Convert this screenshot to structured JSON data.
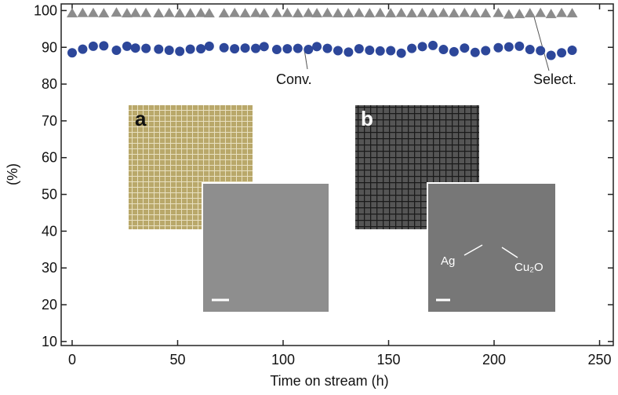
{
  "chart_data": {
    "type": "scatter",
    "x_label": "Time on stream (h)",
    "y_label": "(%)",
    "xlim": [
      -5.2,
      256.5
    ],
    "ylim": [
      8.9,
      101.8
    ],
    "xticks": [
      0,
      50,
      100,
      150,
      200,
      250
    ],
    "yticks": [
      10,
      20,
      30,
      40,
      50,
      60,
      70,
      80,
      90,
      100
    ],
    "x": [
      0,
      5,
      10,
      15,
      21,
      26,
      30,
      35,
      41,
      46,
      51,
      56,
      61,
      65,
      72,
      77,
      82,
      87,
      91,
      97,
      102,
      107,
      112,
      116,
      121,
      126,
      131,
      136,
      141,
      146,
      151,
      156,
      161,
      166,
      171,
      176,
      181,
      186,
      191,
      196,
      202,
      207,
      212,
      217,
      222,
      227,
      232,
      237
    ],
    "series": [
      {
        "name": "Conv.",
        "marker": "circle",
        "color": "#2d479a",
        "values": [
          88.5,
          89.5,
          90.3,
          90.4,
          89.2,
          90.3,
          89.8,
          89.7,
          89.5,
          89.2,
          88.9,
          89.5,
          89.6,
          90.3,
          89.9,
          89.6,
          89.8,
          89.7,
          90.2,
          89.4,
          89.6,
          89.7,
          89.4,
          90.2,
          89.7,
          89.1,
          88.7,
          89.6,
          89.2,
          89.0,
          89.1,
          88.4,
          89.7,
          90.2,
          90.5,
          89.4,
          88.8,
          89.8,
          88.6,
          89.1,
          89.9,
          90.1,
          90.3,
          89.4,
          89.1,
          87.8,
          88.5,
          89.2
        ]
      },
      {
        "name": "Select.",
        "marker": "triangle",
        "color": "#8c8c8c",
        "values": [
          99.2,
          99.3,
          99.3,
          99.2,
          99.4,
          99.2,
          99.3,
          99.3,
          99.2,
          99.3,
          99.2,
          99.2,
          99.3,
          99.2,
          99.2,
          99.3,
          99.2,
          99.3,
          99.2,
          99.3,
          99.3,
          99.2,
          99.3,
          99.2,
          99.3,
          99.2,
          99.2,
          99.3,
          99.2,
          99.3,
          99.2,
          99.3,
          99.2,
          99.3,
          99.2,
          99.3,
          99.2,
          99.3,
          99.2,
          99.2,
          99.3,
          98.9,
          99.0,
          99.2,
          99.3,
          99.0,
          99.3,
          99.2
        ]
      }
    ],
    "insets": {
      "a": "a",
      "b": "b",
      "ag": "Ag",
      "cu2o": "Cu₂O"
    }
  }
}
